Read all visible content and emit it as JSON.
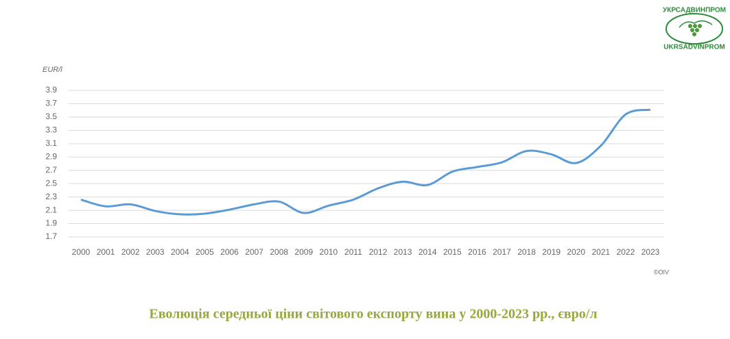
{
  "chart_data": {
    "type": "line",
    "title": "Еволюція середньої ціни світового експорту вина у 2000-2023 рр., євро/л",
    "y_label": "EUR/l",
    "source": "©OIV",
    "categories": [
      "2000",
      "2001",
      "2002",
      "2003",
      "2004",
      "2005",
      "2006",
      "2007",
      "2008",
      "2009",
      "2010",
      "2011",
      "2012",
      "2013",
      "2014",
      "2015",
      "2016",
      "2017",
      "2018",
      "2019",
      "2020",
      "2021",
      "2022",
      "2023"
    ],
    "values": [
      2.26,
      2.16,
      2.19,
      2.09,
      2.04,
      2.05,
      2.11,
      2.19,
      2.23,
      2.06,
      2.17,
      2.26,
      2.43,
      2.53,
      2.48,
      2.68,
      2.75,
      2.82,
      2.99,
      2.94,
      2.81,
      3.07,
      3.54,
      3.61
    ],
    "color": "#5b9bd5",
    "ylim": [
      1.7,
      3.9
    ],
    "yticks": [
      1.7,
      1.9,
      2.1,
      2.3,
      2.5,
      2.7,
      2.9,
      3.1,
      3.3,
      3.5,
      3.7,
      3.9
    ],
    "grid": true
  },
  "logo": {
    "text_top": "УКРСАДВИНПРОМ",
    "text_bottom": "UKRSADVINPROM"
  }
}
